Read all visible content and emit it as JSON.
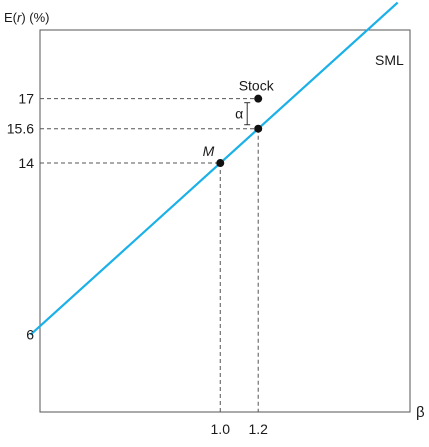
{
  "chart_data": {
    "type": "line",
    "title": "",
    "ylabel_prefix": "E(",
    "ylabel_var": "r",
    "ylabel_suffix": ") (%)",
    "xlabel": "β",
    "xlim": [
      0.05,
      2.0
    ],
    "ylim": [
      2.4,
      20.2
    ],
    "series": [
      {
        "name": "SML",
        "x": [
          0,
          1.0,
          1.2,
          1.935
        ],
        "y": [
          6,
          14,
          15.6,
          21.48
        ]
      }
    ],
    "points": [
      {
        "label": "M",
        "x": 1.0,
        "y": 14
      },
      {
        "label": "",
        "x": 1.2,
        "y": 15.6
      },
      {
        "label": "Stock",
        "x": 1.2,
        "y": 17
      }
    ],
    "alpha_label": "α",
    "y_ticks": [
      {
        "value": 17,
        "label": "17"
      },
      {
        "value": 15.6,
        "label": "15.6"
      },
      {
        "value": 14,
        "label": "14"
      },
      {
        "value": 6,
        "label": "6"
      }
    ],
    "x_ticks": [
      {
        "value": 1.0,
        "label": "1.0"
      },
      {
        "value": 1.2,
        "label": "1.2"
      }
    ],
    "colors": {
      "line": "#1ab0e8",
      "axis": "#555555",
      "guide": "#555555",
      "point": "#111111"
    },
    "grid": false
  }
}
